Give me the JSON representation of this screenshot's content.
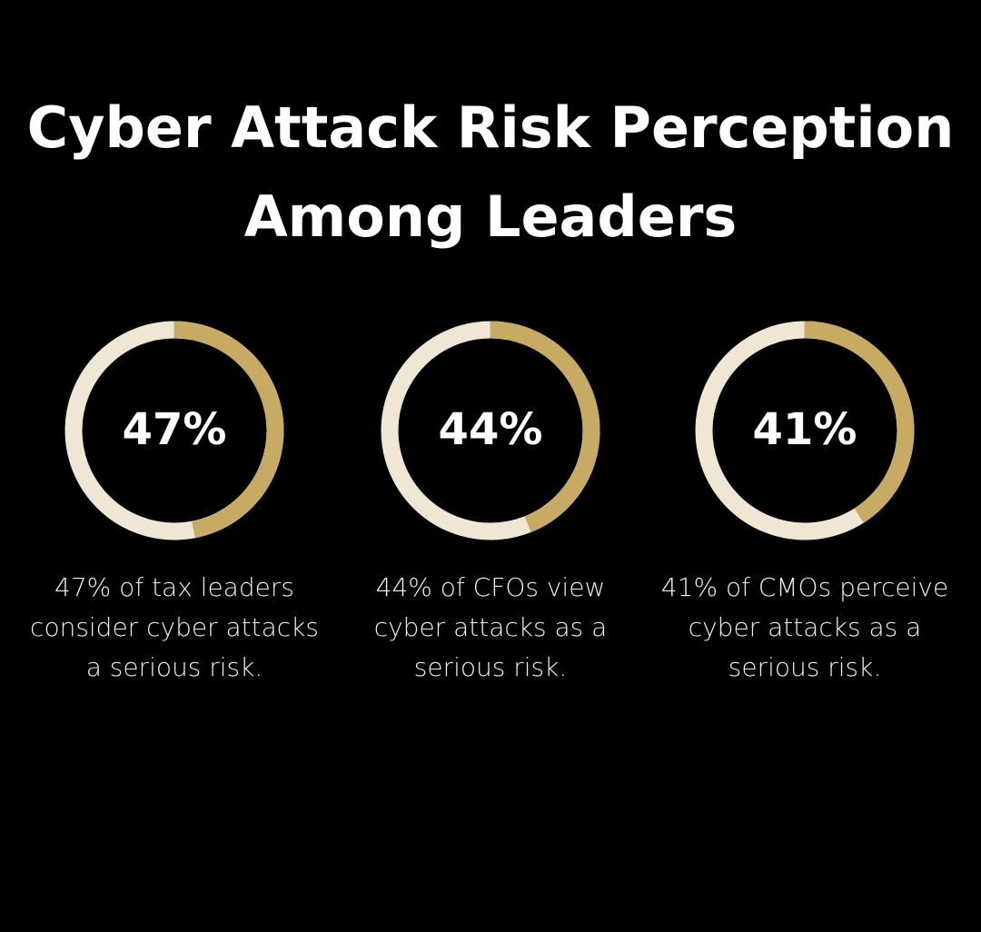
{
  "title": "Cyber Attack Risk Perception Among Leaders",
  "chart_data": [
    {
      "type": "donut",
      "values": [
        47
      ],
      "value_labels": [
        "47%"
      ],
      "color": "#c8ab62",
      "track_color": "#efe6d3",
      "caption": "47% of tax leaders consider cyber attacks a serious risk."
    },
    {
      "type": "donut",
      "values": [
        44
      ],
      "value_labels": [
        "44%"
      ],
      "color": "#c8ab62",
      "track_color": "#efe6d3",
      "caption": "44% of CFOs view cyber attacks as a serious risk."
    },
    {
      "type": "donut",
      "values": [
        41
      ],
      "value_labels": [
        "41%"
      ],
      "color": "#c8ab62",
      "track_color": "#efe6d3",
      "caption": "41% of CMOs perceive cyber attacks as a serious risk."
    }
  ]
}
